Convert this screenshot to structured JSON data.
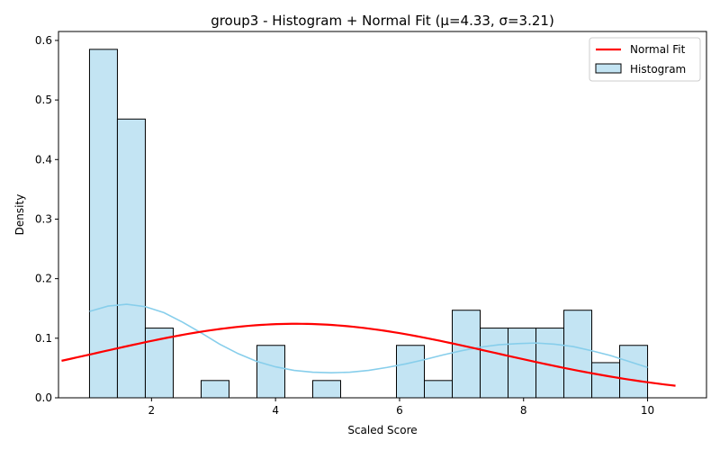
{
  "chart_data": {
    "type": "bar",
    "title": "group3 - Histogram + Normal Fit (μ=4.33, σ=3.21)",
    "xlabel": "Scaled Score",
    "ylabel": "Density",
    "xlim": [
      0.5,
      10.95
    ],
    "ylim": [
      0,
      0.615
    ],
    "x_ticks": [
      2,
      4,
      6,
      8,
      10
    ],
    "y_ticks": [
      0.0,
      0.1,
      0.2,
      0.3,
      0.4,
      0.5,
      0.6
    ],
    "y_tick_labels": [
      "0.0",
      "0.1",
      "0.2",
      "0.3",
      "0.4",
      "0.5",
      "0.6"
    ],
    "grid": false,
    "legend_position": "top-right",
    "colors": {
      "hist_fill": "#c3e4f3",
      "hist_edge": "#000000",
      "kde": "#87ceeb",
      "normal_fit": "#ff0000"
    },
    "legend": [
      {
        "name": "Normal Fit",
        "kind": "line",
        "color": "#ff0000"
      },
      {
        "name": "Histogram",
        "kind": "patch",
        "color": "#c3e4f3"
      }
    ],
    "histogram": {
      "name": "Histogram",
      "bin_edges": [
        1.0,
        1.45,
        1.9,
        2.35,
        2.8,
        3.25,
        3.7,
        4.15,
        4.6,
        5.05,
        5.5,
        5.95,
        6.4,
        6.85,
        7.3,
        7.75,
        8.2,
        8.65,
        9.1,
        9.55,
        10.0
      ],
      "values": [
        0.585,
        0.468,
        0.117,
        0.0,
        0.029,
        0.0,
        0.088,
        0.0,
        0.029,
        0.0,
        0.0,
        0.088,
        0.029,
        0.147,
        0.117,
        0.117,
        0.117,
        0.147,
        0.059,
        0.088
      ]
    },
    "kde": {
      "name": "KDE",
      "x": [
        1.0,
        1.3,
        1.6,
        1.9,
        2.2,
        2.5,
        2.8,
        3.1,
        3.4,
        3.7,
        4.0,
        4.3,
        4.6,
        4.9,
        5.2,
        5.5,
        5.8,
        6.1,
        6.4,
        6.7,
        7.0,
        7.3,
        7.6,
        7.9,
        8.2,
        8.5,
        8.8,
        9.1,
        9.4,
        9.7,
        10.0
      ],
      "y": [
        0.145,
        0.154,
        0.157,
        0.153,
        0.143,
        0.127,
        0.109,
        0.09,
        0.074,
        0.061,
        0.052,
        0.046,
        0.043,
        0.042,
        0.043,
        0.046,
        0.051,
        0.057,
        0.064,
        0.072,
        0.079,
        0.085,
        0.089,
        0.091,
        0.092,
        0.09,
        0.086,
        0.079,
        0.071,
        0.061,
        0.051
      ]
    },
    "normal_fit": {
      "name": "Normal Fit",
      "mu": 4.33,
      "sigma": 3.21,
      "x_range": [
        0.55,
        10.45
      ]
    }
  }
}
